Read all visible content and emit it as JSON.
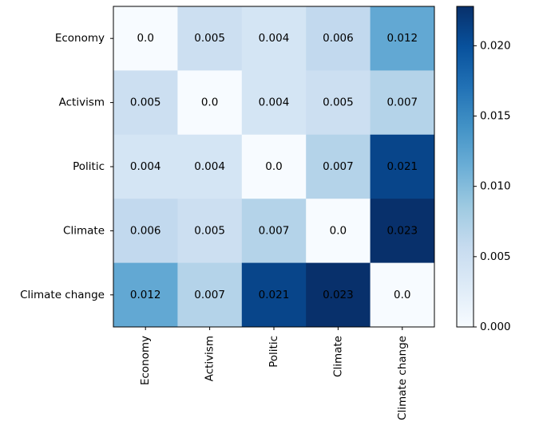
{
  "chart_data": {
    "type": "heatmap",
    "x_categories": [
      "Economy",
      "Activism",
      "Politic",
      "Climate",
      "Climate change"
    ],
    "y_categories": [
      "Economy",
      "Activism",
      "Politic",
      "Climate",
      "Climate change"
    ],
    "values": [
      [
        0,
        0.005,
        0.004,
        0.006,
        0.012
      ],
      [
        0.005,
        0,
        0.004,
        0.005,
        0.007
      ],
      [
        0.004,
        0.004,
        0,
        0.007,
        0.021
      ],
      [
        0.006,
        0.005,
        0.007,
        0,
        0.023
      ],
      [
        0.012,
        0.007,
        0.021,
        0.023,
        0
      ]
    ],
    "value_labels": [
      [
        "0.0",
        "0.005",
        "0.004",
        "0.006",
        "0.012"
      ],
      [
        "0.005",
        "0.0",
        "0.004",
        "0.005",
        "0.007"
      ],
      [
        "0.004",
        "0.004",
        "0.0",
        "0.007",
        "0.021"
      ],
      [
        "0.006",
        "0.005",
        "0.007",
        "0.0",
        "0.023"
      ],
      [
        "0.012",
        "0.007",
        "0.021",
        "0.023",
        "0.0"
      ]
    ],
    "colormap": "Blues",
    "clim": [
      0,
      0.0228
    ],
    "cticks": [
      {
        "value": 0,
        "label": "0.000"
      },
      0.005,
      {
        "value": 0.01,
        "label": "0.010"
      },
      0.015,
      {
        "value": 0.02,
        "label": "0.020"
      }
    ]
  }
}
